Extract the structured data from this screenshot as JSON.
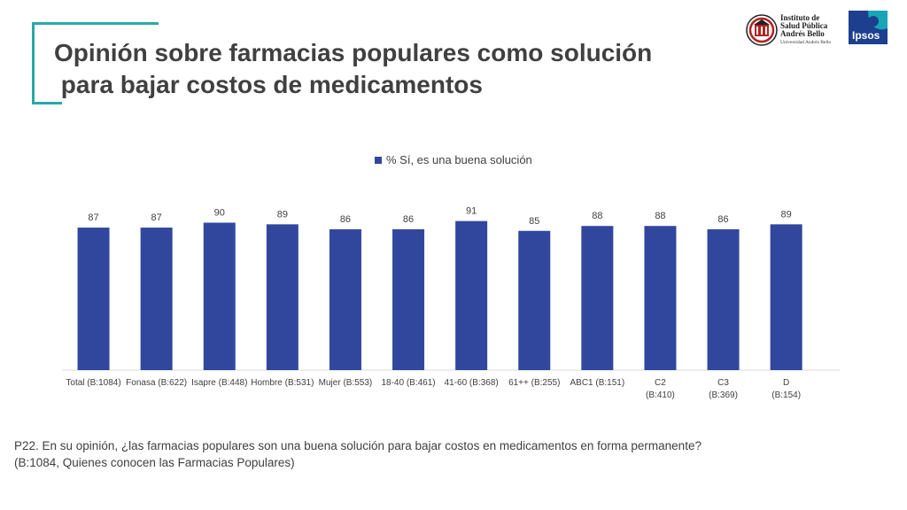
{
  "title_line1": "Opinión sobre farmacias populares como solución",
  "title_line2": " para bajar costos de medicamentos",
  "logos": {
    "isp_name": "Instituto de Salud Pública Andrés Bello",
    "isp_line1": "Instituto de",
    "isp_line2": "Salud Pública",
    "isp_line3": "Andrés Bello",
    "isp_sub": "Universidad Andrés Bello",
    "ipsos": "Ipsos"
  },
  "colors": {
    "bar": "#31479e",
    "accent": "#2aa8a8",
    "text": "#404040"
  },
  "chart_data": {
    "type": "bar",
    "legend": "% Sí, es una buena solución",
    "legend_position": "top",
    "categories": [
      "Total (B:1084)",
      "Fonasa (B:622)",
      "Isapre (B:448)",
      "Hombre (B:531)",
      "Mujer (B:553)",
      "18-40 (B:461)",
      "41-60 (B:368)",
      "61++ (B:255)",
      "ABC1 (B:151)",
      "C2\n(B:410)",
      "C3\n(B:369)",
      "D\n(B:154)"
    ],
    "series": [
      {
        "name": "% Sí, es una buena solución",
        "values": [
          87,
          87,
          90,
          89,
          86,
          86,
          91,
          85,
          88,
          88,
          86,
          89
        ]
      }
    ],
    "ylim": [
      0,
      100
    ],
    "grid": false
  },
  "footnote": {
    "line1": "P22. En su opinión, ¿las farmacias populares son una buena solución para bajar costos en medicamentos en forma permanente?",
    "line2": "(B:1084, Quienes conocen las Farmacias Populares)"
  }
}
